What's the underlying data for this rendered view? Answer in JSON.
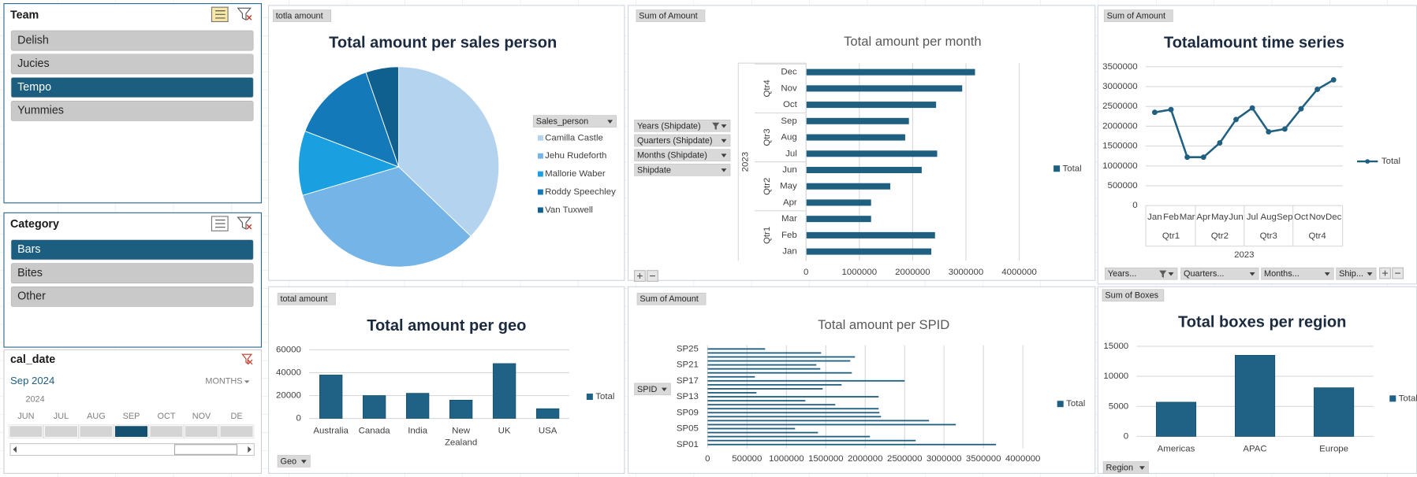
{
  "slicers": [
    {
      "title": "Team",
      "items": [
        {
          "label": "Delish",
          "selected": false
        },
        {
          "label": "Jucies",
          "selected": false
        },
        {
          "label": "Tempo",
          "selected": true
        },
        {
          "label": "Yummies",
          "selected": false
        }
      ]
    },
    {
      "title": "Category",
      "items": [
        {
          "label": "Bars",
          "selected": true
        },
        {
          "label": "Bites",
          "selected": false
        },
        {
          "label": "Other",
          "selected": false
        }
      ]
    }
  ],
  "timeline": {
    "title": "cal_date",
    "period": "Sep 2024",
    "level": "MONTHS",
    "year": "2024",
    "months": [
      {
        "label": "JUN",
        "selected": false
      },
      {
        "label": "JUL",
        "selected": false
      },
      {
        "label": "AUG",
        "selected": false
      },
      {
        "label": "SEP",
        "selected": true
      },
      {
        "label": "OCT",
        "selected": false
      },
      {
        "label": "NOV",
        "selected": false
      },
      {
        "label": "DE",
        "selected": false
      }
    ]
  },
  "chart_data": [
    {
      "type": "pie",
      "field_button": "totla amount",
      "title": "Total amount per sales person",
      "legend_title": "Sales_person",
      "categories": [
        "Camilla Castle",
        "Jehu Rudeforth",
        "Mallorie Waber",
        "Roddy Speechley",
        "Van Tuxwell"
      ],
      "values": [
        37.2,
        33.2,
        10.4,
        13.9,
        5.3
      ],
      "colors": [
        "#b3d3ee",
        "#74b4e6",
        "#1aa0e0",
        "#1479b8",
        "#0f5f8f"
      ]
    },
    {
      "type": "hbar",
      "field_button": "Sum of Amount",
      "title": "Total amount per month",
      "row_buttons": [
        "Years (Shipdate)",
        "Quarters (Shipdate)",
        "Months (Shipdate)",
        "Shipdate"
      ],
      "year": "2023",
      "groups": [
        {
          "label": "Qtr1",
          "size": 3
        },
        {
          "label": "Qtr2",
          "size": 3
        },
        {
          "label": "Qtr3",
          "size": 3
        },
        {
          "label": "Qtr4",
          "size": 3
        }
      ],
      "categories": [
        "Jan",
        "Feb",
        "Mar",
        "Apr",
        "May",
        "Jun",
        "Jul",
        "Aug",
        "Sep",
        "Oct",
        "Nov",
        "Dec"
      ],
      "series": [
        {
          "name": "Total",
          "color": "#1f5f80",
          "values": [
            2350000,
            2420000,
            1220000,
            1220000,
            1580000,
            2170000,
            2460000,
            1860000,
            1930000,
            2440000,
            2930000,
            3170000
          ]
        }
      ],
      "xlim": [
        0,
        4000000
      ],
      "xticks": [
        0,
        1000000,
        2000000,
        3000000,
        4000000
      ],
      "grid": true
    },
    {
      "type": "line",
      "field_button": "Sum of Amount",
      "title": "Totalamount time series",
      "categories": [
        "Jan",
        "Feb",
        "Mar",
        "Apr",
        "May",
        "Jun",
        "Jul",
        "Aug",
        "Sep",
        "Oct",
        "Nov",
        "Dec"
      ],
      "groups": [
        {
          "label": "Qtr1",
          "size": 3
        },
        {
          "label": "Qtr2",
          "size": 3
        },
        {
          "label": "Qtr3",
          "size": 3
        },
        {
          "label": "Qtr4",
          "size": 3
        }
      ],
      "year": "2023",
      "series": [
        {
          "name": "Total",
          "color": "#1f5f80",
          "values": [
            2350000,
            2420000,
            1220000,
            1220000,
            1580000,
            2170000,
            2460000,
            1860000,
            1930000,
            2440000,
            2930000,
            3170000
          ]
        }
      ],
      "ylim": [
        0,
        3500000
      ],
      "yticks": [
        0,
        500000,
        1000000,
        1500000,
        2000000,
        2500000,
        3000000,
        3500000
      ],
      "grid": true,
      "field_buttons": [
        "Years...",
        "Quarters...",
        "Months...",
        "Ship..."
      ]
    },
    {
      "type": "bar",
      "field_button": "total amount",
      "title": "Total amount per geo",
      "axis_button": "Geo",
      "categories": [
        "Australia",
        "Canada",
        "India",
        "New Zealand",
        "UK",
        "USA"
      ],
      "series": [
        {
          "name": "Total",
          "color": "#1f6285",
          "values": [
            38000,
            20000,
            22000,
            16000,
            48000,
            8500
          ]
        }
      ],
      "ylim": [
        0,
        60000
      ],
      "yticks": [
        0,
        20000,
        40000,
        60000
      ],
      "grid": true
    },
    {
      "type": "hbar",
      "field_button": "Sum of Amount",
      "title": "Total amount per SPID",
      "axis_button": "SPID",
      "categories": [
        "SP01",
        null,
        null,
        null,
        "SP05",
        null,
        null,
        null,
        "SP09",
        null,
        null,
        null,
        "SP13",
        null,
        null,
        null,
        "SP17",
        null,
        null,
        null,
        "SP21",
        null,
        null,
        null,
        "SP25"
      ],
      "series": [
        {
          "name": "Total",
          "color": "#1f5f80",
          "values": [
            3660000,
            2640000,
            2060000,
            1400000,
            1110000,
            3150000,
            2810000,
            2200000,
            2180000,
            2170000,
            1620000,
            1240000,
            2170000,
            620000,
            1460000,
            1700000,
            2500000,
            600000,
            1830000,
            1430000,
            1380000,
            1810000,
            1870000,
            1440000,
            730000
          ]
        }
      ],
      "xlim": [
        0,
        4000000
      ],
      "xticks": [
        0,
        500000,
        1000000,
        1500000,
        2000000,
        2500000,
        3000000,
        3500000,
        4000000
      ],
      "grid": true
    },
    {
      "type": "bar",
      "field_button": "Sum of Boxes",
      "title": "Total boxes per  region",
      "axis_button": "Region",
      "categories": [
        "Americas",
        "APAC",
        "Europe"
      ],
      "series": [
        {
          "name": "Total",
          "color": "#1f6285",
          "values": [
            5700,
            13500,
            8100
          ]
        }
      ],
      "ylim": [
        0,
        15000
      ],
      "yticks": [
        0,
        5000,
        10000,
        15000
      ],
      "grid": true
    }
  ]
}
